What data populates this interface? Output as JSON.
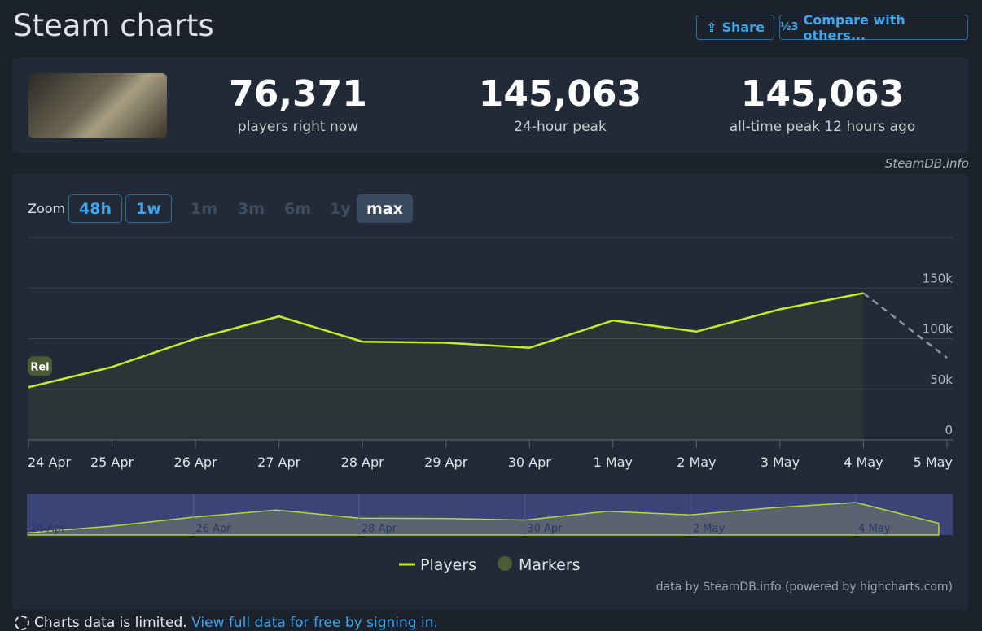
{
  "header": {
    "title": "Steam charts",
    "share": "Share",
    "compare": "Compare with others..."
  },
  "stats": [
    {
      "value": "76,371",
      "label": "players right now"
    },
    {
      "value": "145,063",
      "label": "24-hour peak"
    },
    {
      "value": "145,063",
      "label": "all-time peak 12 hours ago"
    }
  ],
  "source": "SteamDB.info",
  "zoom": {
    "label": "Zoom",
    "options": [
      {
        "label": "48h",
        "state": "enabled"
      },
      {
        "label": "1w",
        "state": "enabled"
      },
      {
        "label": "1m",
        "state": "disabled"
      },
      {
        "label": "3m",
        "state": "disabled"
      },
      {
        "label": "6m",
        "state": "disabled"
      },
      {
        "label": "1y",
        "state": "disabled"
      },
      {
        "label": "max",
        "state": "selected"
      }
    ]
  },
  "chart_data": {
    "type": "line",
    "categories": [
      "24 Apr",
      "25 Apr",
      "26 Apr",
      "27 Apr",
      "28 Apr",
      "29 Apr",
      "30 Apr",
      "1 May",
      "2 May",
      "3 May",
      "4 May",
      "5 May"
    ],
    "series": [
      {
        "name": "Players",
        "color": "#c8ea2c",
        "values": [
          52000,
          72000,
          100000,
          122000,
          97000,
          96000,
          91000,
          118000,
          107000,
          129000,
          145000,
          81000
        ]
      }
    ],
    "last_segment_dashed": true,
    "markers": {
      "name": "Markers",
      "color": "#4b5b34",
      "labels": [
        "Rel"
      ]
    },
    "ylim": [
      0,
      200000
    ],
    "yticks": [
      0,
      {
        "value": 50000,
        "label": "50k"
      },
      {
        "value": 100000,
        "label": "100k"
      },
      {
        "value": 150000,
        "label": "150k"
      }
    ],
    "grid": true,
    "legend": "bottom"
  },
  "credits": "data by SteamDB.info (powered by highcharts.com)",
  "notice": {
    "text": "Charts data is limited.",
    "link": "View full data for free by signing in."
  }
}
